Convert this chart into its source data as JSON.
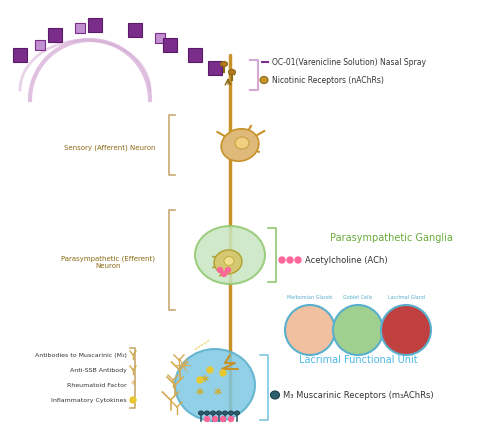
{
  "bg_color": "#ffffff",
  "neuron_axon_color": "#c8922a",
  "sensory_label": "Sensory (Afferent) Neuron",
  "parasympathetic_label": "Parasympathetic (Efferent)\nNeuron",
  "ganglia_label": "Parasympathetic Ganglia",
  "ganglia_color": "#c8e6c2",
  "ach_label": "Acetylcholine (ACh)",
  "ach_color": "#ff6699",
  "oc01_label": "OC-01(Varenicline Solution) Nasal Spray",
  "nicotinic_label": "Nicotinic Receptors (nAChRs)",
  "nicotinic_color": "#8B6914",
  "purple_color": "#7B2D8B",
  "light_purple": "#d4a8d4",
  "lacrimal_label": "Lacrimal Functional Unit",
  "lacrimal_color": "#4db8e8",
  "m3_label": "M₃ Muscarinic Receptors (m₃AChRs)",
  "m3_color": "#2c5f6e",
  "antibodies_label": "Antibodies to Muscarinic (M₃)",
  "antissb_label": "Anti-SSB Antibody",
  "rheumatoid_label": "Rheumatoid Factor",
  "cytokines_label": "Inflammatory Cytokines",
  "left_label_color": "#8B6914",
  "bracket_color": "#c8a870",
  "ganglia_bracket_color": "#90b870",
  "cell_blue": "#7ec8e3",
  "cell_border": "#5aafcc",
  "meibomian_label": "Meibomian Glands",
  "goblet_label": "Goblet Cells",
  "lacrimal_gland_label": "Lacrimal Gland",
  "pink_color": "#ff8fab",
  "label_color_dark": "#333333",
  "green_label_color": "#6aaa3a"
}
